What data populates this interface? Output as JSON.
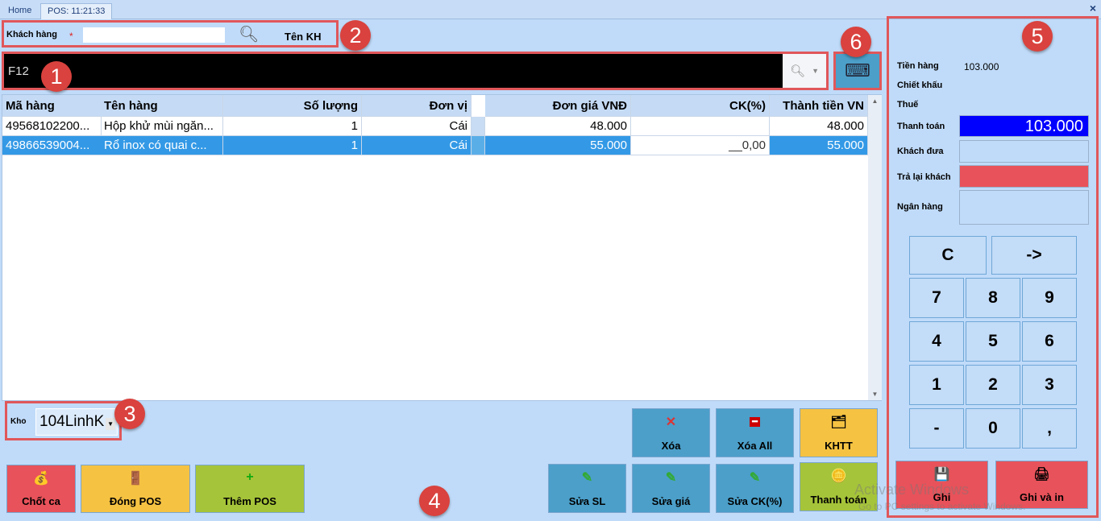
{
  "tabs": [
    {
      "label": "Home"
    },
    {
      "label": "POS: 11:21:33"
    }
  ],
  "close_icon": "×",
  "customer": {
    "label": "Khách hàng",
    "required": "*",
    "value": "",
    "name_label": "Tên KH"
  },
  "scan": {
    "placeholder": "F12",
    "value": ""
  },
  "grid": {
    "columns": [
      "Mã hàng",
      "Tên hàng",
      "Số lượng",
      "Đơn vị",
      "Đơn giá VNĐ",
      "CK(%)",
      "Thành tiền VN"
    ],
    "rows": [
      {
        "code": "49568102200...",
        "name": "Hộp khử mùi ngăn...",
        "qty": "1",
        "unit": "Cái",
        "price": "48.000",
        "ck": "",
        "total": "48.000"
      },
      {
        "code": "49866539004...",
        "name": "Rổ inox có quai c...",
        "qty": "1",
        "unit": "Cái",
        "price": "55.000",
        "ck": "__0,00",
        "total": "55.000",
        "selected": true
      }
    ]
  },
  "warehouse": {
    "label": "Kho",
    "value": "104LinhK"
  },
  "buttons": {
    "xoa": "Xóa",
    "xoa_all": "Xóa All",
    "khtt": "KHTT",
    "sua_sl": "Sửa SL",
    "sua_gia": "Sửa giá",
    "sua_ck": "Sửa CK(%)",
    "thanh_toan": "Thanh toán",
    "chot_ca": "Chốt ca",
    "dong_pos": "Đóng POS",
    "them_pos": "Thêm POS",
    "ghi": "Ghi",
    "ghi_va_in": "Ghi và in"
  },
  "summary": {
    "tien_hang_label": "Tiền hàng",
    "tien_hang": "103.000",
    "chiet_khau_label": "Chiết khấu",
    "thue_label": "Thuế",
    "thanh_toan_label": "Thanh toán",
    "thanh_toan": "103.000",
    "khach_dua_label": "Khách đưa",
    "tra_lai_label": "Trả lại khách",
    "ngan_hang_label": "Ngân hàng"
  },
  "keypad": [
    "C",
    "->",
    "7",
    "8",
    "9",
    "4",
    "5",
    "6",
    "1",
    "2",
    "3",
    "-",
    "0",
    ","
  ],
  "annotations": [
    "1",
    "2",
    "3",
    "4",
    "5",
    "6"
  ],
  "watermark": {
    "line1": "Activate Windows",
    "line2": "Go to PC settings to activate Windows."
  },
  "colors": {
    "background": "#c0dbf9",
    "payment_total": "#0000ff",
    "change": "#e8525a",
    "selected_row": "#3399e6"
  }
}
